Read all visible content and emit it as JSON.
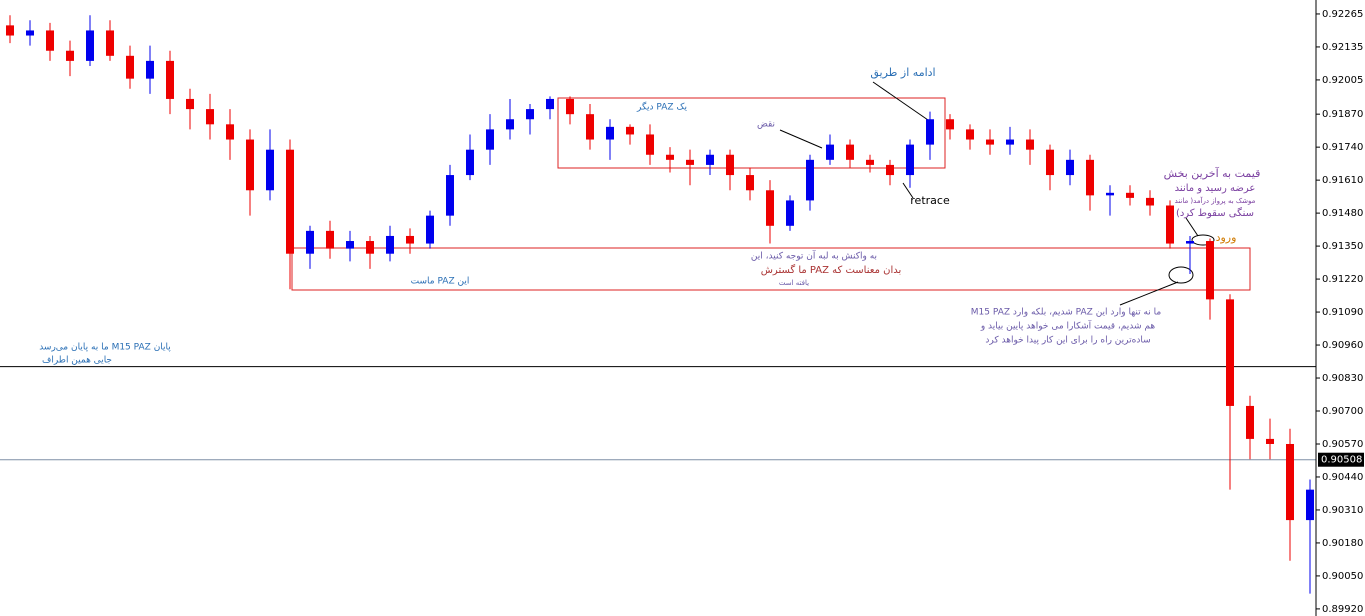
{
  "chart_data": {
    "type": "candlestick",
    "open": [
      0.9222,
      0.9218,
      0.922,
      0.9212,
      0.9208,
      0.922,
      0.921,
      0.9201,
      0.9208,
      0.9193,
      0.9189,
      0.9183,
      0.9177,
      0.9157,
      0.9173,
      0.9132,
      0.9141,
      0.9134,
      0.9137,
      0.9132,
      0.9139,
      0.9136,
      0.9147,
      0.9163,
      0.9173,
      0.9181,
      0.9185,
      0.9189,
      0.9193,
      0.9187,
      0.9177,
      0.9182,
      0.9179,
      0.9171,
      0.9169,
      0.9167,
      0.9171,
      0.9163,
      0.9157,
      0.9143,
      0.9153,
      0.9169,
      0.9175,
      0.9169,
      0.9167,
      0.9163,
      0.9175,
      0.9185,
      0.9181,
      0.9177,
      0.9175,
      0.9177,
      0.9173,
      0.9163,
      0.9169,
      0.9155,
      0.9156,
      0.9154,
      0.9151,
      0.9136,
      0.9137,
      0.9114,
      0.9072,
      0.9059,
      0.9057,
      0.9027
    ],
    "close": [
      0.9218,
      0.922,
      0.9212,
      0.9208,
      0.922,
      0.921,
      0.9201,
      0.9208,
      0.9193,
      0.9189,
      0.9183,
      0.9177,
      0.9157,
      0.9173,
      0.9132,
      0.9141,
      0.9134,
      0.9137,
      0.9132,
      0.9139,
      0.9136,
      0.9147,
      0.9163,
      0.9173,
      0.9181,
      0.9185,
      0.9189,
      0.9193,
      0.9187,
      0.9177,
      0.9182,
      0.9179,
      0.9171,
      0.9169,
      0.9167,
      0.9171,
      0.9163,
      0.9157,
      0.9143,
      0.9153,
      0.9169,
      0.9175,
      0.9169,
      0.9167,
      0.9163,
      0.9175,
      0.9185,
      0.9181,
      0.9177,
      0.9175,
      0.9177,
      0.9173,
      0.9163,
      0.9169,
      0.9155,
      0.9156,
      0.9154,
      0.9151,
      0.9136,
      0.9137,
      0.9114,
      0.9072,
      0.9059,
      0.9057,
      0.9027,
      0.9039
    ],
    "high": [
      0.9226,
      0.9224,
      0.9223,
      0.9216,
      0.9226,
      0.9224,
      0.9214,
      0.9214,
      0.9212,
      0.9197,
      0.9195,
      0.9189,
      0.9181,
      0.9181,
      0.9177,
      0.9143,
      0.9145,
      0.9141,
      0.9139,
      0.9143,
      0.9142,
      0.9149,
      0.9167,
      0.9179,
      0.9187,
      0.9193,
      0.9191,
      0.9194,
      0.9194,
      0.9191,
      0.9185,
      0.9183,
      0.9183,
      0.9174,
      0.9173,
      0.9173,
      0.9173,
      0.9166,
      0.9161,
      0.9155,
      0.9171,
      0.9179,
      0.9177,
      0.9171,
      0.9169,
      0.9177,
      0.9188,
      0.9187,
      0.9183,
      0.9181,
      0.9182,
      0.9181,
      0.9175,
      0.9173,
      0.9171,
      0.9159,
      0.9159,
      0.9157,
      0.9153,
      0.9139,
      0.9138,
      0.9116,
      0.9076,
      0.9067,
      0.9063,
      0.9043
    ],
    "low": [
      0.9215,
      0.9214,
      0.9208,
      0.9202,
      0.9206,
      0.9208,
      0.9197,
      0.9195,
      0.9187,
      0.9181,
      0.9177,
      0.9169,
      0.9147,
      0.9153,
      0.9118,
      0.9126,
      0.913,
      0.9129,
      0.9126,
      0.9129,
      0.9132,
      0.9134,
      0.9143,
      0.9161,
      0.9167,
      0.9177,
      0.9179,
      0.9185,
      0.9183,
      0.9173,
      0.9169,
      0.9175,
      0.9167,
      0.9164,
      0.9159,
      0.9163,
      0.9157,
      0.9153,
      0.9136,
      0.9141,
      0.9149,
      0.9167,
      0.9166,
      0.9164,
      0.9159,
      0.9158,
      0.9169,
      0.9177,
      0.9173,
      0.9171,
      0.9171,
      0.9167,
      0.9157,
      0.9159,
      0.9149,
      0.9147,
      0.9151,
      0.9147,
      0.9134,
      0.9124,
      0.9106,
      0.9039,
      0.9051,
      0.9051,
      0.9011,
      0.8998
    ],
    "up_color": "#0000ee",
    "down_color": "#ee0000",
    "ylim": [
      0.89892,
      0.9232
    ],
    "yticks": [
      0.92265,
      0.92135,
      0.92005,
      {
        "value": 0.9187,
        "label": "0.91870"
      },
      {
        "value": 0.9174,
        "label": "0.91740"
      },
      {
        "value": 0.9161,
        "label": "0.91610"
      },
      {
        "value": 0.9148,
        "label": "0.91480"
      },
      {
        "value": 0.9135,
        "label": "0.91350"
      },
      {
        "value": 0.9122,
        "label": "0.91220"
      },
      {
        "value": 0.9109,
        "label": "0.91090"
      },
      {
        "value": 0.9096,
        "label": "0.90960"
      },
      {
        "value": 0.9083,
        "label": "0.90830"
      },
      {
        "value": 0.907,
        "label": "0.90700"
      },
      {
        "value": 0.9057,
        "label": "0.90570"
      },
      {
        "value": 0.9044,
        "label": "0.90440"
      },
      {
        "value": 0.9031,
        "label": "0.90310"
      },
      {
        "value": 0.9018,
        "label": "0.90180"
      },
      {
        "value": 0.9005,
        "label": "0.90050"
      },
      {
        "value": 0.8992,
        "label": "0.89920"
      }
    ],
    "hlines": [
      {
        "value": 0.90875,
        "color": "#000000"
      },
      {
        "value": 0.90508,
        "color": "#7f8fa6"
      }
    ],
    "current_price": 0.90508,
    "annotations": [
      "ادامه از طریق",
      "یک PAZ دیگر",
      "نقض",
      "retrace",
      "قیمت به آخرین بخش",
      "عرضه رسید و مانند",
      "موشک به پرواز درآمد( مانند",
      "سنگی سقوط کرد)",
      "ورود",
      "به واکنش به لبه آن توجه کنید، این",
      "بدان معناست که PAZ ما گسترش",
      "یافته است",
      "این PAZ ماست",
      "ما نه تنها وارد این PAZ شدیم، بلکه وارد M15 PAZ",
      "هم شدیم، قیمت آشکارا می خواهد پایین بیاید و",
      "ساده‌ترین راه را برای این کار پیدا خواهد کرد",
      "پایان M15 PAZ ما به پایان می‌رسد",
      "جایی همین اطراف"
    ]
  }
}
